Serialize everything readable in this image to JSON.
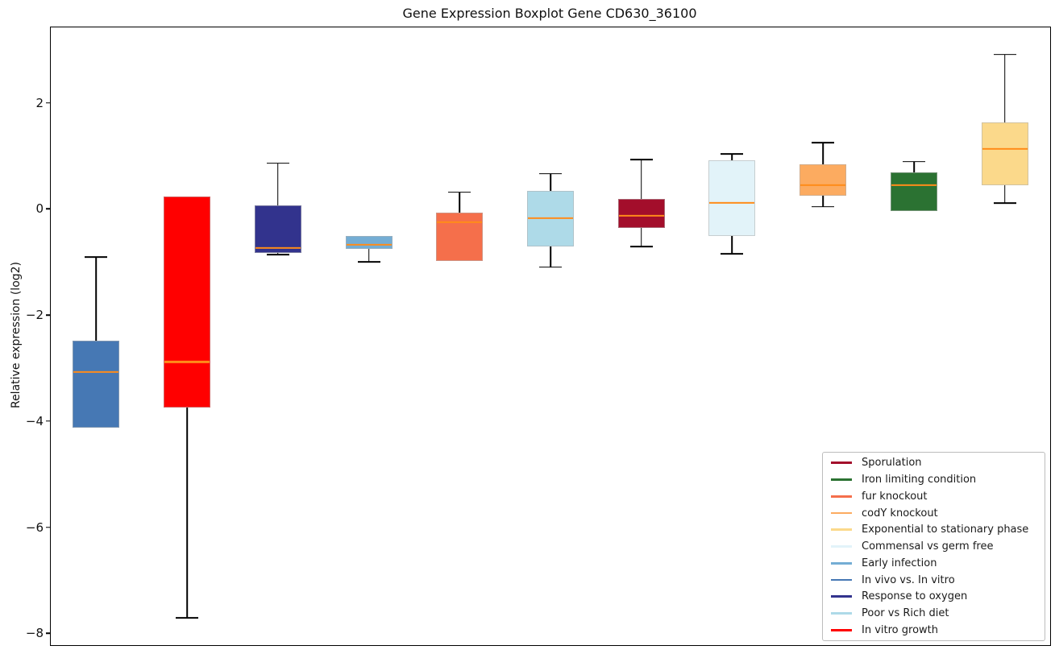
{
  "chart_data": {
    "type": "boxplot",
    "title": "Gene Expression Boxplot Gene CD630_36100",
    "ylabel": "Relative expression (log2)",
    "xlabel": "",
    "ylim": [
      -8.21,
      3.44
    ],
    "yticks": [
      {
        "value": 2,
        "label": "2"
      },
      {
        "value": 0,
        "label": "0"
      },
      {
        "value": -2,
        "label": "−2"
      },
      {
        "value": -4,
        "label": "−4"
      },
      {
        "value": -6,
        "label": "−6"
      },
      {
        "value": -8,
        "label": "−8"
      }
    ],
    "grid": false,
    "x_tick_labels": [],
    "median_color": "#ff8c1a",
    "legend_position": "lower right",
    "boxes": [
      {
        "condition": "In vivo vs. In vitro",
        "color": "#4678b4",
        "whisker_low": -4.11,
        "q1": -4.11,
        "median": -3.06,
        "q3": -2.47,
        "whisker_high": -0.89
      },
      {
        "condition": "In vitro growth",
        "color": "#ff0000",
        "whisker_low": -7.7,
        "q1": -3.73,
        "median": -2.87,
        "q3": 0.25,
        "whisker_high": 0.25
      },
      {
        "condition": "Response to oxygen",
        "color": "#32338d",
        "whisker_low": -0.85,
        "q1": -0.81,
        "median": -0.72,
        "q3": 0.09,
        "whisker_high": 0.88
      },
      {
        "condition": "Early infection",
        "color": "#74add4",
        "whisker_low": -0.98,
        "q1": -0.73,
        "median": -0.66,
        "q3": -0.49,
        "whisker_high": -0.49
      },
      {
        "condition": "fur knockout",
        "color": "#f56f4b",
        "whisker_low": -0.96,
        "q1": -0.96,
        "median": -0.23,
        "q3": -0.05,
        "whisker_high": 0.33
      },
      {
        "condition": "Poor vs Rich diet",
        "color": "#aedae8",
        "whisker_low": -1.08,
        "q1": -0.69,
        "median": -0.16,
        "q3": 0.35,
        "whisker_high": 0.68
      },
      {
        "condition": "Sporulation",
        "color": "#a30e2b",
        "whisker_low": -0.69,
        "q1": -0.34,
        "median": -0.11,
        "q3": 0.2,
        "whisker_high": 0.95
      },
      {
        "condition": "Commensal vs germ free",
        "color": "#e2f3f9",
        "whisker_low": -0.83,
        "q1": -0.5,
        "median": 0.13,
        "q3": 0.93,
        "whisker_high": 1.05
      },
      {
        "condition": "codY knockout",
        "color": "#fcab60",
        "whisker_low": 0.06,
        "q1": 0.26,
        "median": 0.47,
        "q3": 0.86,
        "whisker_high": 1.27
      },
      {
        "condition": "Iron limiting condition",
        "color": "#2b7232",
        "whisker_low": -0.02,
        "q1": -0.02,
        "median": 0.47,
        "q3": 0.71,
        "whisker_high": 0.91
      },
      {
        "condition": "Exponential to stationary phase",
        "color": "#fbd98b",
        "whisker_low": 0.13,
        "q1": 0.46,
        "median": 1.15,
        "q3": 1.65,
        "whisker_high": 2.93
      }
    ],
    "legend": [
      {
        "label": "Sporulation",
        "color": "#a30e2b"
      },
      {
        "label": "Iron limiting condition",
        "color": "#2b7232"
      },
      {
        "label": "fur knockout",
        "color": "#f56f4b"
      },
      {
        "label": "codY knockout",
        "color": "#fcab60"
      },
      {
        "label": "Exponential to stationary phase",
        "color": "#fbd98b"
      },
      {
        "label": "Commensal vs germ free",
        "color": "#e2f3f9"
      },
      {
        "label": "Early infection",
        "color": "#74add4"
      },
      {
        "label": "In vivo vs. In vitro",
        "color": "#4678b4"
      },
      {
        "label": "Response to oxygen",
        "color": "#32338d"
      },
      {
        "label": "Poor vs Rich diet",
        "color": "#aedae8"
      },
      {
        "label": "In vitro growth",
        "color": "#ff0000"
      }
    ]
  }
}
